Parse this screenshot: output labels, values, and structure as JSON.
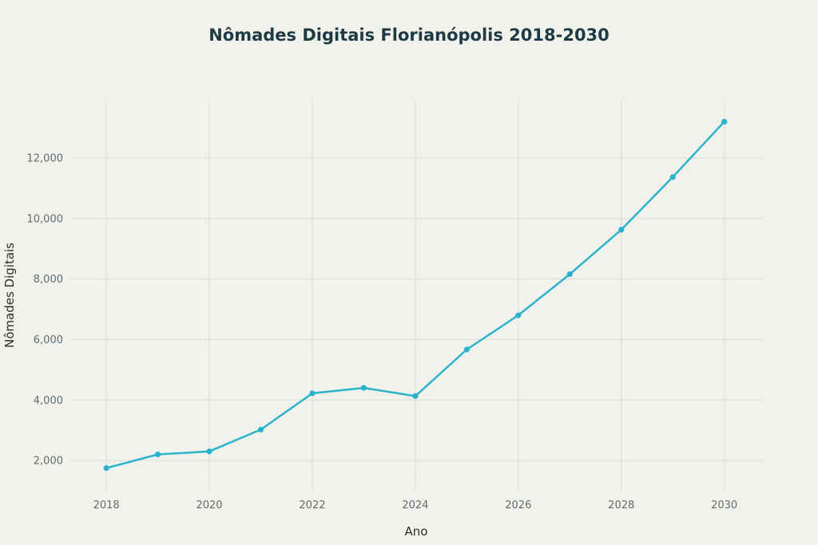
{
  "chart_data": {
    "type": "line",
    "title": "Nômades Digitais Florianópolis 2018-2030",
    "xlabel": "Ano",
    "ylabel": "Nômades Digitais",
    "x": [
      2018,
      2019,
      2020,
      2021,
      2022,
      2023,
      2024,
      2025,
      2026,
      2027,
      2028,
      2029,
      2030
    ],
    "series": [
      {
        "values": [
          1750,
          2200,
          2300,
          3020,
          4220,
          4400,
          4130,
          5670,
          6800,
          8160,
          9630,
          11370,
          13200
        ]
      }
    ],
    "x_ticks": [
      "2018",
      "2020",
      "2022",
      "2024",
      "2026",
      "2028",
      "2030"
    ],
    "y_ticks": [
      "2,000",
      "4,000",
      "6,000",
      "8,000",
      "10,000",
      "12,000"
    ],
    "y_tick_values": [
      2000,
      4000,
      6000,
      8000,
      10000,
      12000
    ],
    "xlim": [
      2017.3,
      2030.75
    ],
    "ylim": [
      1000,
      13900
    ],
    "grid": true,
    "colors": {
      "series": "#2bb3cc",
      "background": "#f2f2ed",
      "grid": "#dcdcd6"
    }
  }
}
